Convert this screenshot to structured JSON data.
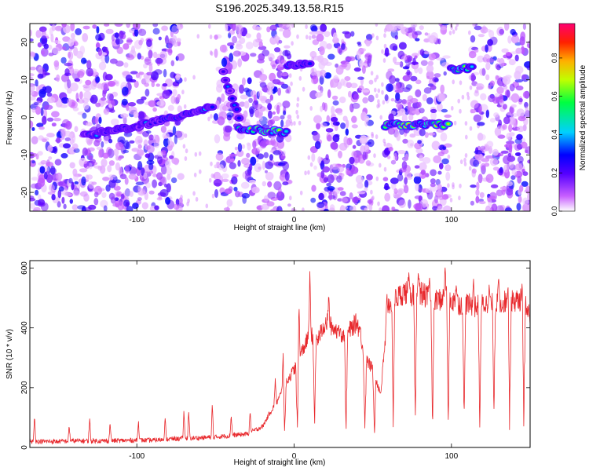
{
  "title": "S196.2025.349.13.58.R15",
  "chart_data": [
    {
      "type": "heatmap",
      "xlabel": "Height of straight line (km)",
      "ylabel": "Frequency (Hz)",
      "xlim": [
        -168,
        150
      ],
      "ylim": [
        -25,
        25
      ],
      "xticks": [
        -100,
        0,
        100
      ],
      "xtick_labels": [
        "-100",
        "0",
        "100"
      ],
      "yticks": [
        -20,
        -10,
        0,
        10,
        20
      ],
      "ytick_labels": [
        "-20",
        "-10",
        "0",
        "10",
        "20"
      ],
      "colorbar": {
        "label": "Normalized spectral amplitude",
        "range": [
          0,
          0.98
        ],
        "ticks": [
          0.0,
          0.2,
          0.4,
          0.6,
          0.8
        ],
        "tick_labels": [
          "0.0",
          "0.2",
          "0.4",
          "0.6",
          "0.8"
        ]
      },
      "blank_bands_km": [
        [
          -72,
          -50
        ],
        [
          -3,
          12
        ],
        [
          49,
          58
        ],
        [
          98,
          113
        ]
      ],
      "ridge_segments": [
        {
          "x_start": -133,
          "x_end": -85,
          "freq_start": -5,
          "freq_end": -1,
          "peak_amplitude": 0.45
        },
        {
          "x_start": -85,
          "x_end": -52,
          "freq_start": -1,
          "freq_end": 3,
          "peak_amplitude": 0.5
        },
        {
          "x_start": -45,
          "x_end": -35,
          "freq_start": 12,
          "freq_end": 0,
          "peak_amplitude": 0.4
        },
        {
          "x_start": -35,
          "x_end": -5,
          "freq_start": -3,
          "freq_end": -4,
          "peak_amplitude": 0.85
        },
        {
          "x_start": -4,
          "x_end": 10,
          "freq_start": 14,
          "freq_end": 14,
          "peak_amplitude": 0.45
        },
        {
          "x_start": 58,
          "x_end": 98,
          "freq_start": -2,
          "freq_end": -2,
          "peak_amplitude": 0.9
        },
        {
          "x_start": 100,
          "x_end": 113,
          "freq_start": 13,
          "freq_end": 13,
          "peak_amplitude": 0.92
        }
      ]
    },
    {
      "type": "line",
      "xlabel": "Height of straight line (km)",
      "ylabel": "SNR (10 * v/v)",
      "xlim": [
        -168,
        150
      ],
      "ylim": [
        0,
        625
      ],
      "xticks": [
        -100,
        0,
        100
      ],
      "xtick_labels": [
        "-100",
        "0",
        "100"
      ],
      "yticks": [
        0,
        200,
        400,
        600
      ],
      "ytick_labels": [
        "0",
        "200",
        "400",
        "600"
      ],
      "series": [
        {
          "name": "SNR",
          "color": "#e8282c",
          "x": [
            -168,
            -160,
            -150,
            -140,
            -130,
            -120,
            -110,
            -100,
            -90,
            -80,
            -70,
            -60,
            -50,
            -40,
            -30,
            -20,
            -15,
            -10,
            -5,
            0,
            5,
            10,
            15,
            20,
            25,
            30,
            35,
            40,
            45,
            50,
            55,
            60,
            65,
            70,
            75,
            80,
            85,
            90,
            95,
            100,
            105,
            110,
            115,
            120,
            125,
            130,
            135,
            140,
            145,
            150
          ],
          "baseline": [
            20,
            20,
            20,
            22,
            22,
            22,
            23,
            24,
            24,
            28,
            30,
            32,
            35,
            40,
            45,
            70,
            120,
            160,
            220,
            260,
            320,
            380,
            360,
            420,
            400,
            380,
            390,
            420,
            300,
            260,
            180,
            480,
            500,
            520,
            510,
            520,
            500,
            490,
            500,
            490,
            480,
            480,
            470,
            480,
            480,
            480,
            490,
            490,
            495,
            440
          ],
          "spikes": [
            {
              "x": -165,
              "v": 115
            },
            {
              "x": -143,
              "v": 80
            },
            {
              "x": -130,
              "v": 110
            },
            {
              "x": -117,
              "v": 90
            },
            {
              "x": -99,
              "v": 100
            },
            {
              "x": -82,
              "v": 110
            },
            {
              "x": -70,
              "v": 140
            },
            {
              "x": -67,
              "v": 130
            },
            {
              "x": -52,
              "v": 160
            },
            {
              "x": -40,
              "v": 120
            },
            {
              "x": -28,
              "v": 130
            },
            {
              "x": -12,
              "v": 240
            },
            {
              "x": -7,
              "v": 340
            },
            {
              "x": 3,
              "v": 540
            },
            {
              "x": 10,
              "v": 600
            },
            {
              "x": 22,
              "v": 520
            },
            {
              "x": 28,
              "v": 400
            },
            {
              "x": 42,
              "v": 410
            },
            {
              "x": 59,
              "v": 520
            },
            {
              "x": 73,
              "v": 610
            },
            {
              "x": 79,
              "v": 600
            },
            {
              "x": 86,
              "v": 580
            },
            {
              "x": 96,
              "v": 620
            },
            {
              "x": 103,
              "v": 560
            },
            {
              "x": 114,
              "v": 580
            },
            {
              "x": 124,
              "v": 550
            },
            {
              "x": 130,
              "v": 580
            },
            {
              "x": 136,
              "v": 560
            },
            {
              "x": 145,
              "v": 570
            }
          ],
          "dropouts": [
            {
              "x": -6,
              "v": 20
            },
            {
              "x": 2,
              "v": 20
            },
            {
              "x": 13,
              "v": 20
            },
            {
              "x": 33,
              "v": 20
            },
            {
              "x": 45,
              "v": 20
            },
            {
              "x": 51,
              "v": 20
            },
            {
              "x": 63,
              "v": 20
            },
            {
              "x": 77,
              "v": 20
            },
            {
              "x": 88,
              "v": 20
            },
            {
              "x": 98,
              "v": 20
            },
            {
              "x": 108,
              "v": 20
            },
            {
              "x": 118,
              "v": 20
            },
            {
              "x": 127,
              "v": 20
            },
            {
              "x": 137,
              "v": 20
            },
            {
              "x": 146,
              "v": 20
            }
          ]
        }
      ]
    }
  ]
}
